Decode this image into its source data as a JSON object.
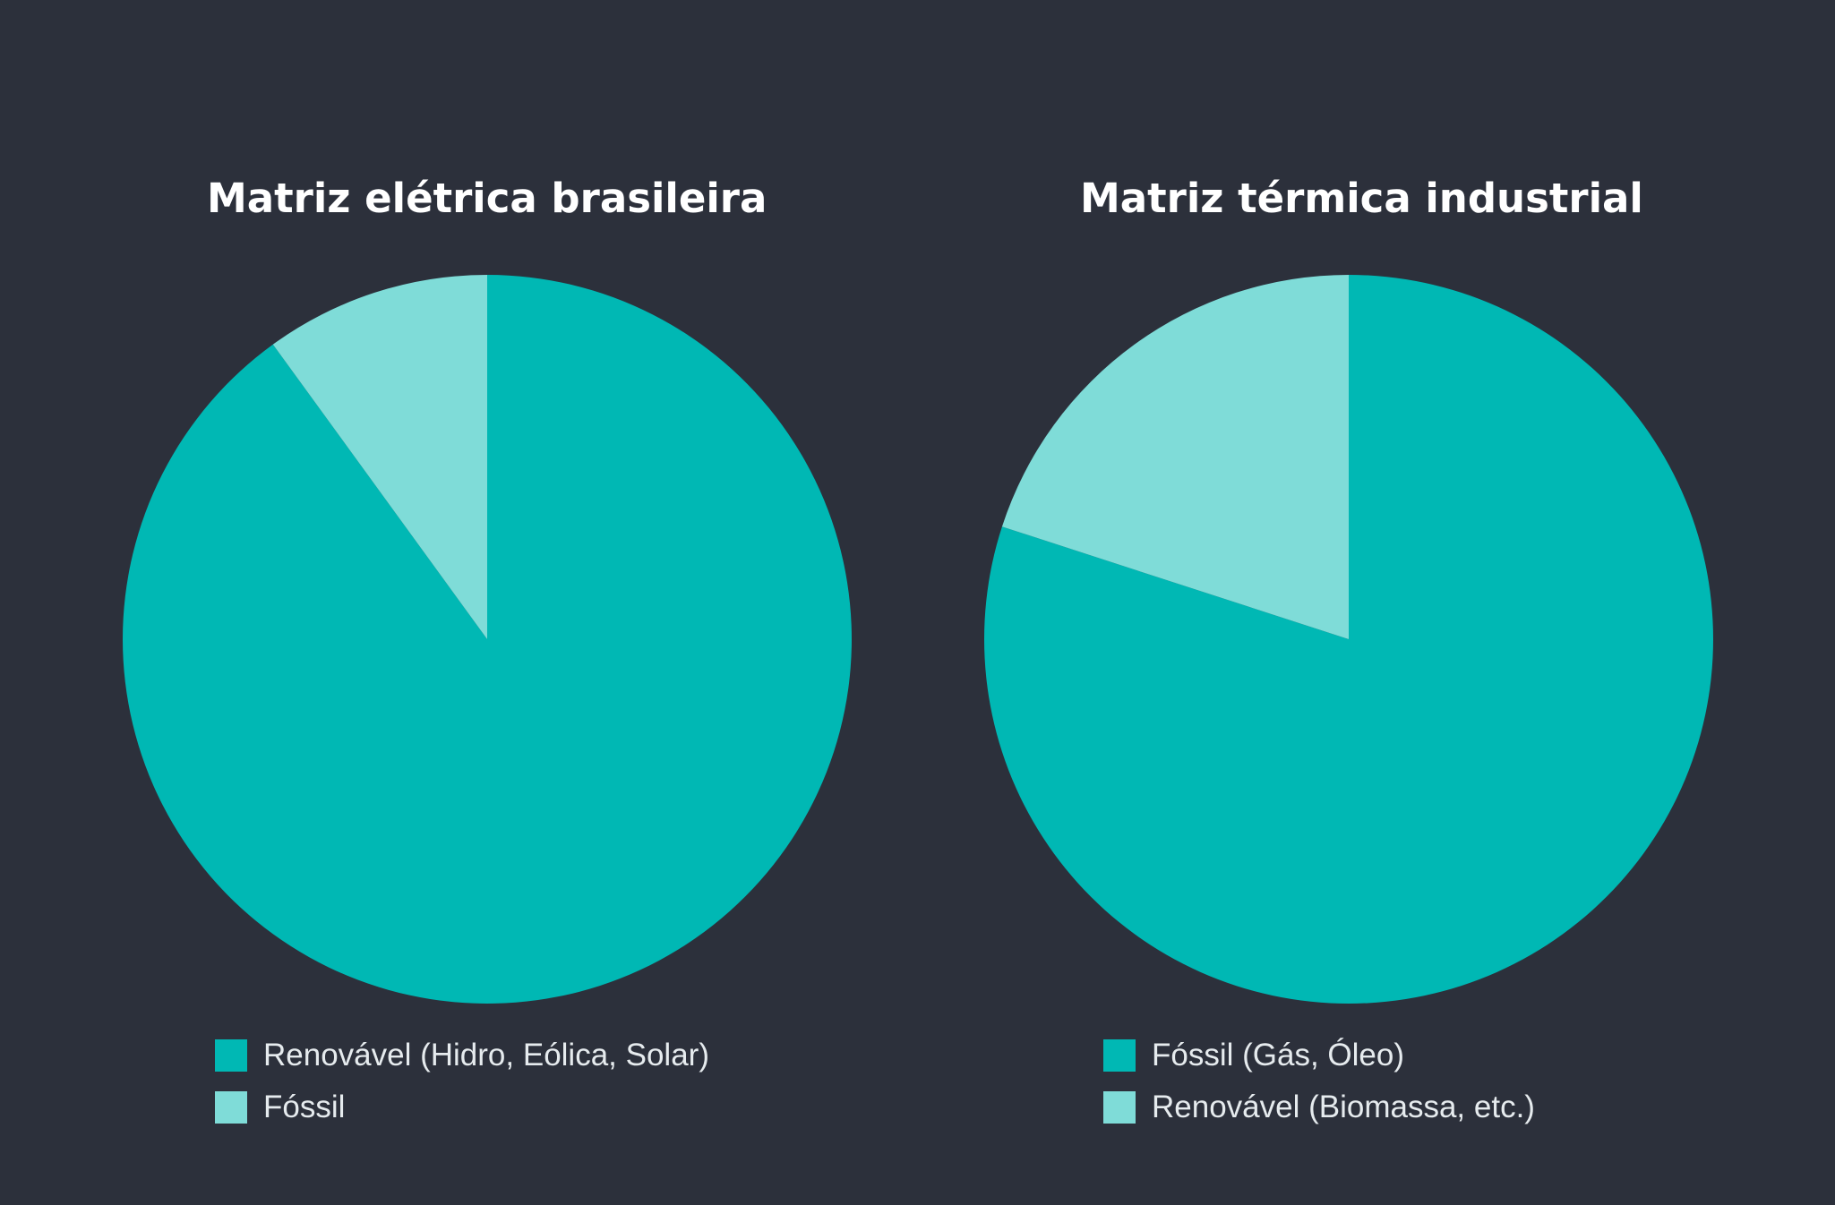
{
  "colors": {
    "background": "#2c303b",
    "primary_slice": "#00b8b4",
    "secondary_slice": "#7fdcd8"
  },
  "chart_data": [
    {
      "type": "pie",
      "title": "Matriz elétrica brasileira",
      "slices": [
        {
          "label": "Renovável (Hidro, Eólica, Solar)",
          "value": 90,
          "color": "#00b8b4"
        },
        {
          "label": "Fóssil",
          "value": 10,
          "color": "#7fdcd8"
        }
      ],
      "legend_position": "bottom"
    },
    {
      "type": "pie",
      "title": "Matriz térmica industrial",
      "slices": [
        {
          "label": "Fóssil (Gás, Óleo)",
          "value": 80,
          "color": "#00b8b4"
        },
        {
          "label": "Renovável (Biomassa, etc.)",
          "value": 20,
          "color": "#7fdcd8"
        }
      ],
      "legend_position": "bottom"
    }
  ]
}
